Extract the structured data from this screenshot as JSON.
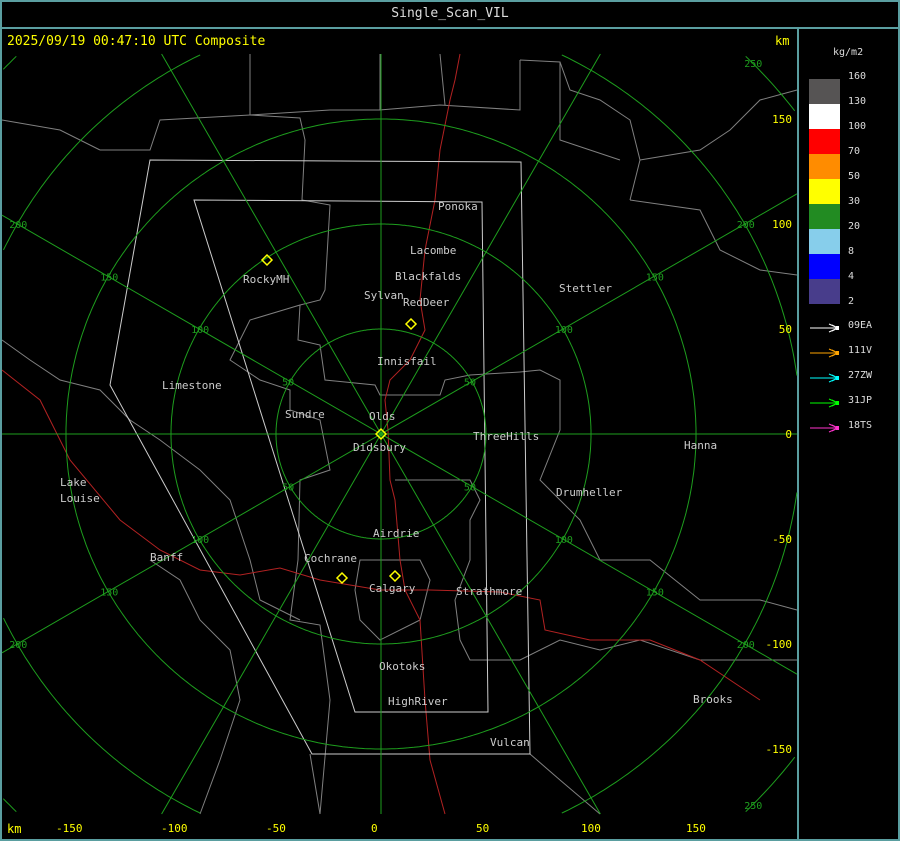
{
  "window_title": "Single_Scan_VIL",
  "timestamp": "2025/09/19 00:47:10 UTC Composite",
  "km_label": "km",
  "legend": {
    "unit": "kg/m2",
    "top_value": "160",
    "bins": [
      {
        "value": "130",
        "color": "#565454"
      },
      {
        "value": "100",
        "color": "#ffffff"
      },
      {
        "value": "70",
        "color": "#ff0000"
      },
      {
        "value": "50",
        "color": "#ff8c00"
      },
      {
        "value": "30",
        "color": "#ffff00"
      },
      {
        "value": "20",
        "color": "#228b22"
      },
      {
        "value": "8",
        "color": "#87ceeb"
      },
      {
        "value": "4",
        "color": "#0000ff"
      },
      {
        "value": "2",
        "color": "#483d8b"
      }
    ],
    "radars": [
      {
        "id": "09EA",
        "color": "#ffffff"
      },
      {
        "id": "111V",
        "color": "#ffa500"
      },
      {
        "id": "27ZW",
        "color": "#00ffff"
      },
      {
        "id": "31JP",
        "color": "#00ff00"
      },
      {
        "id": "18TS",
        "color": "#ff33cc"
      }
    ]
  },
  "x_ticks": [
    "-150",
    "-100",
    "-50",
    "0",
    "50",
    "100",
    "150"
  ],
  "y_ticks": [
    "150",
    "100",
    "50",
    "0",
    "-50",
    "-100",
    "-150"
  ],
  "ring_labels": [
    "50",
    "100",
    "150",
    "200",
    "250"
  ],
  "cities": [
    "Ponoka",
    "Lacombe",
    "Blackfalds",
    "Sylvan",
    "RedDeer",
    "RockyMH",
    "Stettler",
    "Innisfail",
    "Limestone",
    "Sundre",
    "Olds",
    "Didsbury",
    "ThreeHills",
    "Hanna",
    "Drumheller",
    "Lake",
    "Louise",
    "Banff",
    "Airdrie",
    "Cochrane",
    "Calgary",
    "Strathmore",
    "Okotoks",
    "HighRiver",
    "Vulcan",
    "Brooks"
  ]
}
